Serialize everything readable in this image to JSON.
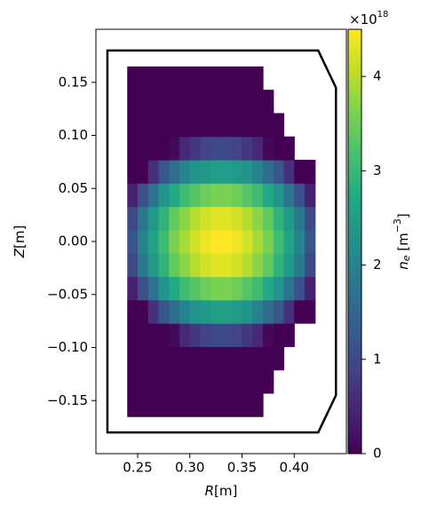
{
  "chart_data": {
    "type": "heatmap",
    "colormap": "viridis",
    "xlabel": [
      "R",
      "[m]"
    ],
    "ylabel": [
      "Z",
      "[m]"
    ],
    "colorbar_label": [
      "n",
      "e",
      " [m",
      "−3",
      "]"
    ],
    "colorbar_offset": [
      "×10",
      "18"
    ],
    "xlim": [
      0.21,
      0.45
    ],
    "ylim": [
      -0.2,
      0.2
    ],
    "xticks": [
      0.25,
      {
        "value": 0.3,
        "label": "0.30"
      },
      0.35,
      {
        "value": 0.4,
        "label": "0.40"
      }
    ],
    "yticks": [
      0.15,
      {
        "value": 0.1,
        "label": "0.10"
      },
      {
        "value": 0.05,
        "label": "0.05"
      },
      {
        "value": 0,
        "label": "0.00"
      },
      {
        "value": -0.05,
        "label": "−0.05"
      },
      {
        "value": -0.1,
        "label": "−0.10"
      },
      {
        "value": -0.15,
        "label": "−0.15"
      }
    ],
    "clim": [
      0,
      4.5
    ],
    "cticks": [
      0,
      1,
      2,
      3,
      4
    ],
    "x": [
      0.245,
      0.255,
      0.265,
      0.275,
      0.285,
      0.295,
      0.305,
      0.315,
      0.325,
      0.335,
      0.345,
      0.355,
      0.365,
      0.375,
      0.385,
      0.395,
      0.405,
      0.415
    ],
    "y": [
      -0.154,
      -0.132,
      -0.11,
      -0.088,
      -0.066,
      -0.044,
      -0.022,
      0,
      0.022,
      0.044,
      0.066,
      0.088,
      0.11,
      0.132,
      0.154
    ],
    "z": [
      [
        0,
        0,
        0,
        0,
        0,
        0,
        0,
        0,
        0,
        0,
        0,
        0,
        0,
        null,
        null,
        null,
        null,
        null
      ],
      [
        0,
        0,
        0,
        0,
        0,
        0,
        0,
        0,
        0,
        0,
        0,
        0,
        0,
        0,
        null,
        null,
        null,
        null
      ],
      [
        0,
        0,
        0,
        0,
        0,
        0,
        0,
        0,
        0,
        0,
        0,
        0,
        0,
        0,
        0,
        null,
        null,
        null
      ],
      [
        0,
        0,
        0,
        0,
        0.1,
        0.5,
        0.7,
        0.9,
        1.0,
        1.0,
        0.9,
        0.7,
        0.5,
        0.1,
        0,
        0,
        null,
        null
      ],
      [
        0,
        0,
        0.6,
        1.2,
        1.6,
        2.0,
        2.3,
        2.4,
        2.5,
        2.5,
        2.4,
        2.3,
        2.0,
        1.6,
        1.2,
        0.6,
        0,
        0
      ],
      [
        0.4,
        1.1,
        1.7,
        2.3,
        2.7,
        3.1,
        3.3,
        3.5,
        3.6,
        3.6,
        3.5,
        3.3,
        3.1,
        2.7,
        2.3,
        1.7,
        1.1,
        0.4
      ],
      [
        1.0,
        1.8,
        2.4,
        2.9,
        3.4,
        3.7,
        4.0,
        4.2,
        4.3,
        4.3,
        4.2,
        4.0,
        3.7,
        3.4,
        2.9,
        2.4,
        1.8,
        1.0
      ],
      [
        1.2,
        2.0,
        2.6,
        3.1,
        3.6,
        3.9,
        4.2,
        4.4,
        4.5,
        4.5,
        4.4,
        4.2,
        3.9,
        3.6,
        3.1,
        2.6,
        2.0,
        1.2
      ],
      [
        1.0,
        1.8,
        2.4,
        2.9,
        3.4,
        3.7,
        4.0,
        4.2,
        4.3,
        4.3,
        4.2,
        4.0,
        3.7,
        3.4,
        2.9,
        2.4,
        1.8,
        1.0
      ],
      [
        0.4,
        1.1,
        1.7,
        2.3,
        2.7,
        3.1,
        3.3,
        3.5,
        3.6,
        3.6,
        3.5,
        3.3,
        3.1,
        2.7,
        2.3,
        1.7,
        1.1,
        0.4
      ],
      [
        0,
        0,
        0.6,
        1.2,
        1.6,
        2.0,
        2.3,
        2.4,
        2.5,
        2.5,
        2.4,
        2.3,
        2.0,
        1.6,
        1.2,
        0.6,
        0,
        0
      ],
      [
        0,
        0,
        0,
        0,
        0.1,
        0.5,
        0.7,
        0.9,
        1.0,
        1.0,
        0.9,
        0.7,
        0.5,
        0.1,
        0,
        0,
        null,
        null
      ],
      [
        0,
        0,
        0,
        0,
        0,
        0,
        0,
        0,
        0,
        0,
        0,
        0,
        0,
        0,
        0,
        null,
        null,
        null
      ],
      [
        0,
        0,
        0,
        0,
        0,
        0,
        0,
        0,
        0,
        0,
        0,
        0,
        0,
        0,
        null,
        null,
        null,
        null
      ],
      [
        0,
        0,
        0,
        0,
        0,
        0,
        0,
        0,
        0,
        0,
        0,
        0,
        0,
        null,
        null,
        null,
        null,
        null
      ]
    ],
    "wall": {
      "R": [
        0.221,
        0.423,
        0.44,
        0.44,
        0.423,
        0.221
      ],
      "Z": [
        0.18,
        0.18,
        0.145,
        -0.145,
        -0.18,
        -0.18
      ],
      "color": "#000000"
    }
  }
}
